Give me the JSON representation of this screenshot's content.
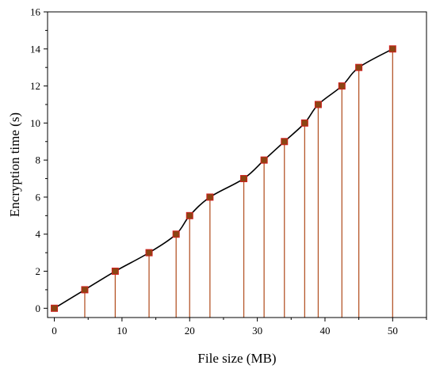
{
  "chart_data": {
    "type": "line",
    "xlabel": "File size (MB)",
    "ylabel": "Encryption time (s)",
    "xlim": [
      -1,
      55
    ],
    "ylim": [
      -0.5,
      16
    ],
    "x_ticks": [
      0,
      10,
      20,
      30,
      40,
      50
    ],
    "y_ticks": [
      0,
      2,
      4,
      6,
      8,
      10,
      12,
      14,
      16
    ],
    "grid": false,
    "legend": "none",
    "series": [
      {
        "x": [
          0,
          4.5,
          9,
          14,
          18,
          20,
          23,
          28,
          31,
          34,
          37,
          39,
          42.5,
          45,
          50
        ],
        "y": [
          0,
          1,
          2,
          3,
          4,
          5,
          6,
          7,
          8,
          9,
          10,
          11,
          12,
          13,
          14
        ],
        "line_color": "#000000",
        "marker_color": "#8b4513",
        "marker_edge_color": "#d22020",
        "drop_line_color": "#b5562a"
      }
    ]
  }
}
